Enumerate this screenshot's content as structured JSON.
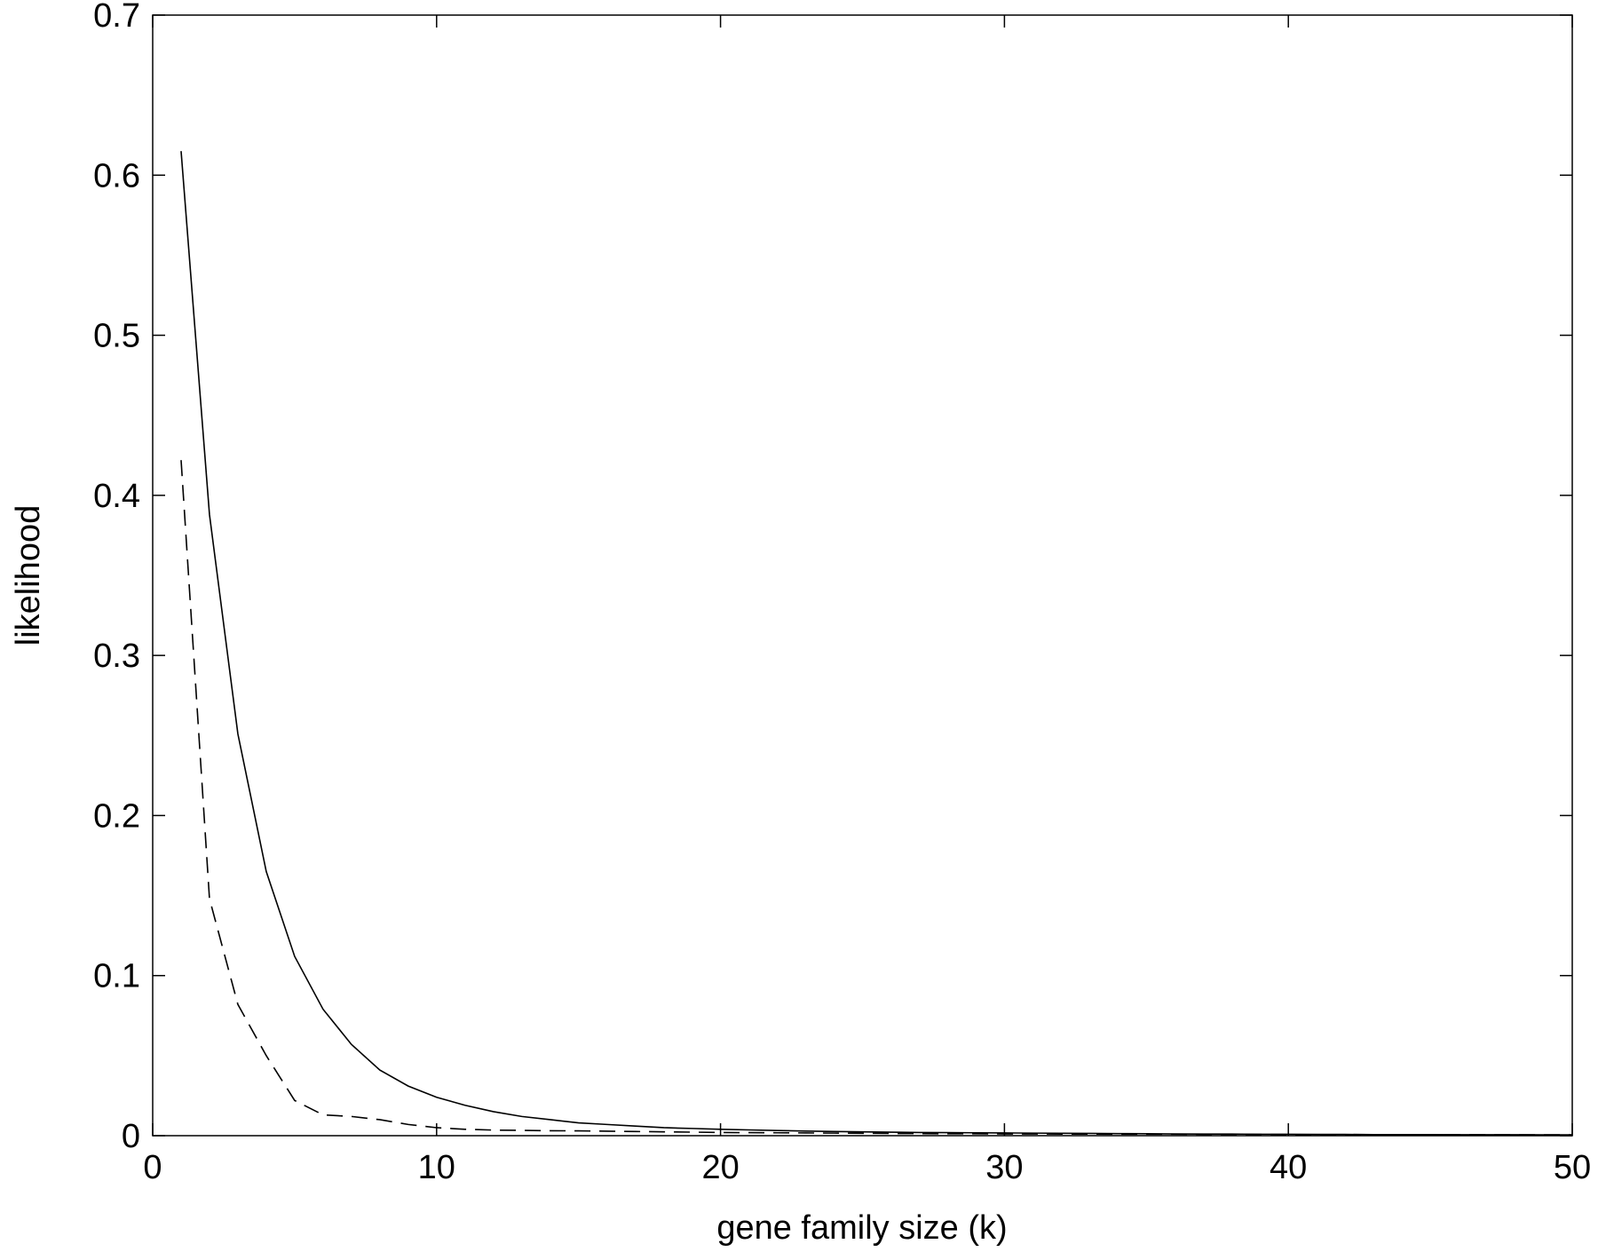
{
  "chart_data": {
    "type": "line",
    "x_label": "gene family size (k)",
    "y_label": "likelihood",
    "x": [
      1,
      2,
      3,
      4,
      5,
      6,
      7,
      8,
      9,
      10,
      11,
      12,
      13,
      14,
      15,
      16,
      17,
      18,
      19,
      20,
      21,
      22,
      23,
      24,
      25,
      26,
      27,
      28,
      29,
      30,
      31,
      32,
      33,
      34,
      35,
      36,
      37,
      38,
      39,
      40,
      41,
      42,
      43,
      44,
      45,
      46,
      47,
      48,
      49,
      50
    ],
    "series": [
      {
        "color": "#000000",
        "dash": "solid",
        "values": [
          0.615,
          0.388,
          0.251,
          0.165,
          0.112,
          0.079,
          0.057,
          0.041,
          0.031,
          0.024,
          0.019,
          0.015,
          0.012,
          0.01,
          0.008,
          0.007,
          0.006,
          0.005,
          0.0045,
          0.004,
          0.0036,
          0.0032,
          0.0029,
          0.0026,
          0.0024,
          0.0022,
          0.002,
          0.0019,
          0.0018,
          0.0017,
          0.0016,
          0.0015,
          0.0014,
          0.0013,
          0.0012,
          0.0011,
          0.001,
          0.001,
          0.0009,
          0.0009,
          0.0008,
          0.0008,
          0.0007,
          0.0007,
          0.0007,
          0.0006,
          0.0006,
          0.0006,
          0.0005,
          0.0005
        ]
      },
      {
        "color": "#000000",
        "dash": "dashed",
        "values": [
          0.422,
          0.148,
          0.082,
          0.05,
          0.022,
          0.013,
          0.012,
          0.01,
          0.007,
          0.005,
          0.004,
          0.0035,
          0.0033,
          0.0031,
          0.003,
          0.0028,
          0.0026,
          0.0024,
          0.0022,
          0.002,
          0.0019,
          0.0018,
          0.0017,
          0.0016,
          0.0015,
          0.0014,
          0.0013,
          0.0012,
          0.0012,
          0.0011,
          0.0011,
          0.001,
          0.001,
          0.0009,
          0.0009,
          0.0009,
          0.0008,
          0.0008,
          0.0008,
          0.0007,
          0.0007,
          0.0007,
          0.0006,
          0.0006,
          0.0006,
          0.0006,
          0.0005,
          0.0005,
          0.0005,
          0.0005
        ]
      }
    ],
    "xlim": [
      0,
      50
    ],
    "xticks": [
      0,
      10,
      20,
      30,
      40,
      50
    ],
    "ylim": [
      0,
      0.7
    ],
    "yticks": [
      0,
      0.1,
      0.2,
      0.3,
      0.4,
      0.5,
      0.6,
      0.7
    ]
  }
}
